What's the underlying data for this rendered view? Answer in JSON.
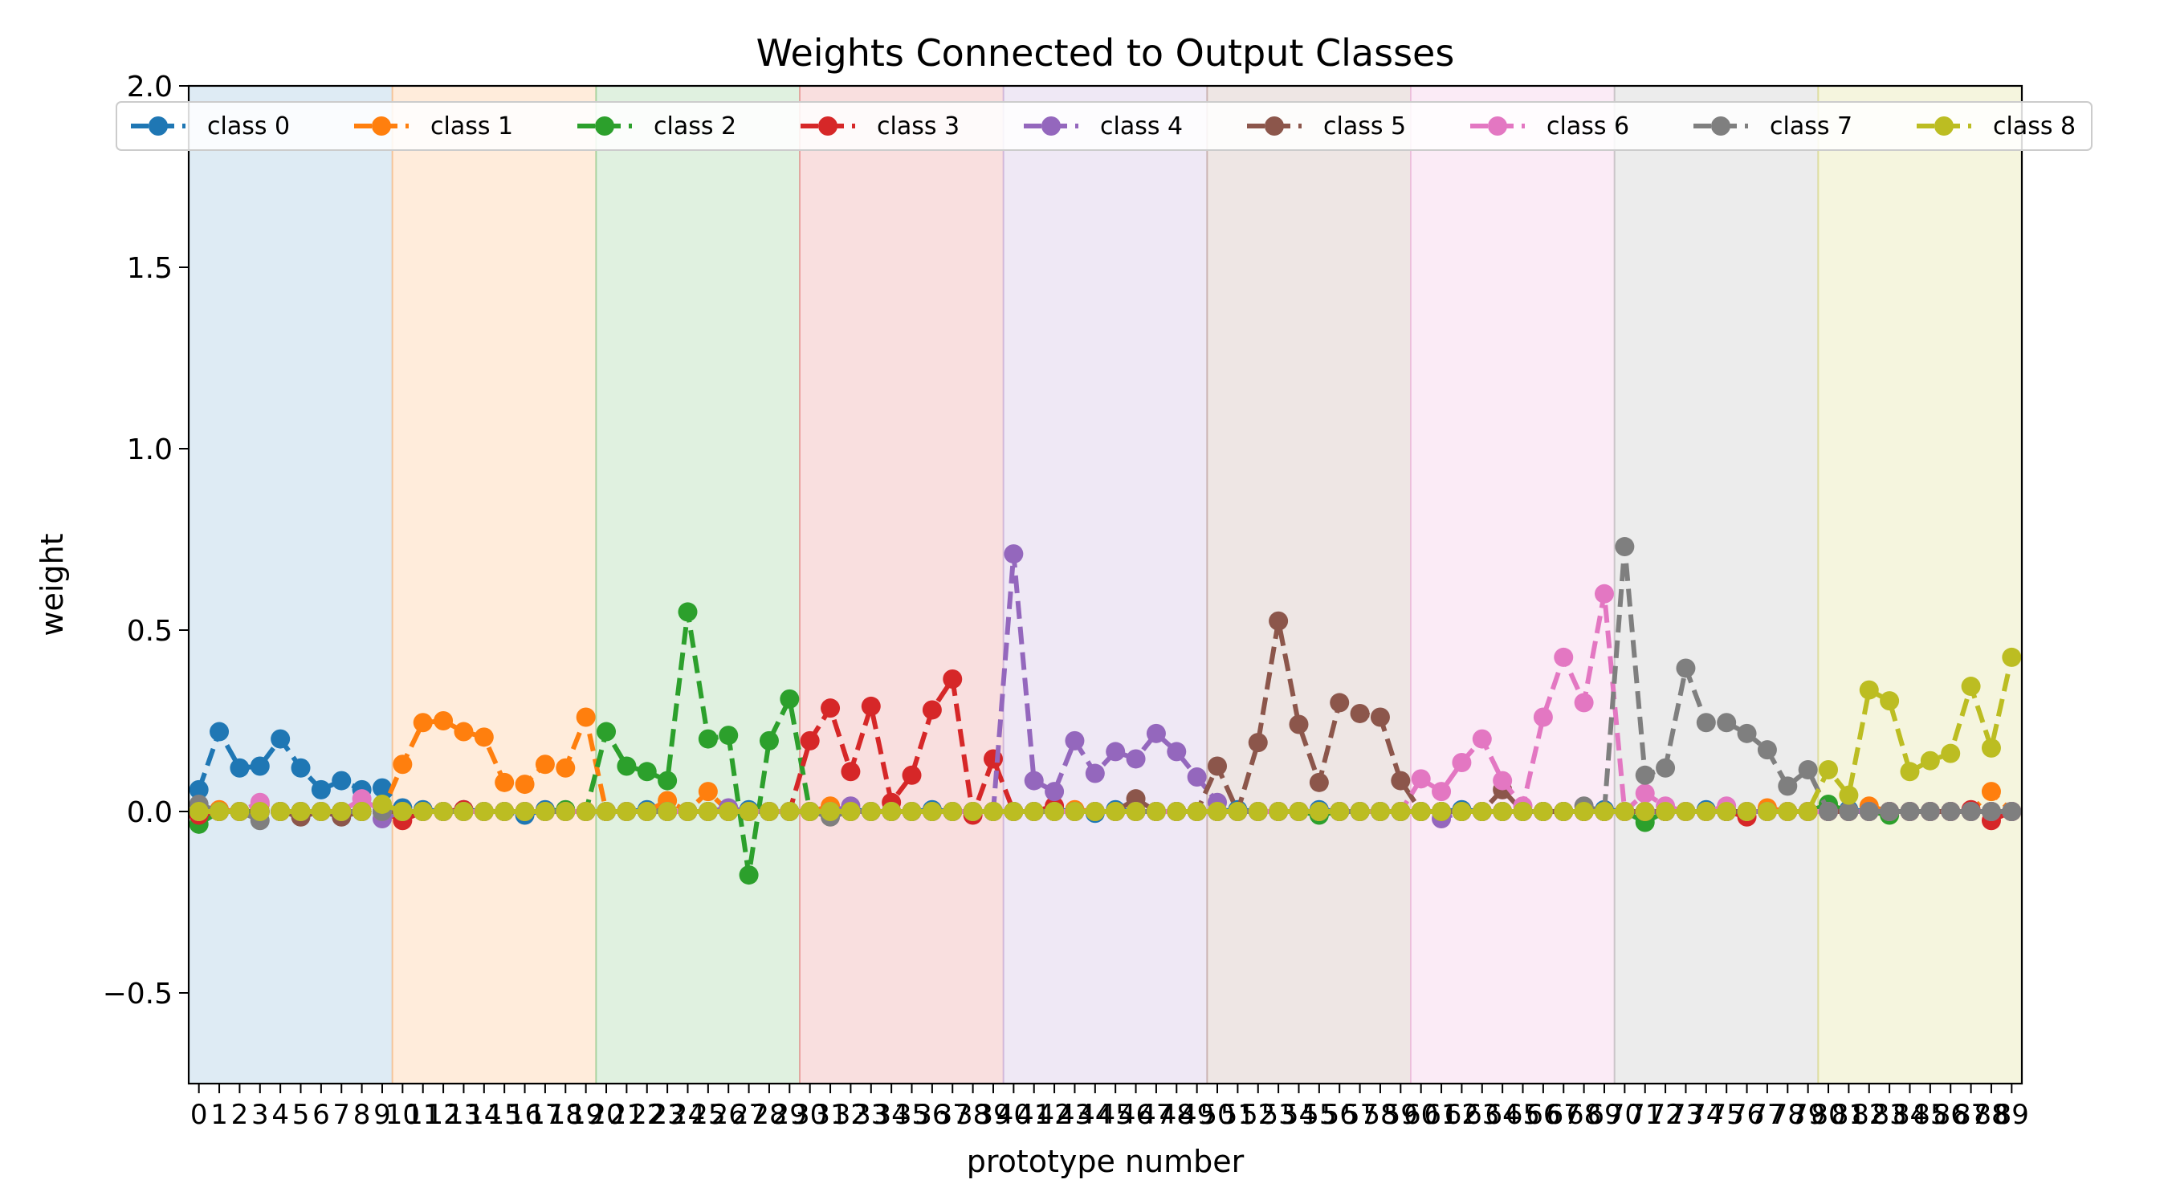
{
  "chart_data": {
    "type": "line",
    "title": "Weights Connected to Output Classes",
    "xlabel": "prototype number",
    "ylabel": "weight",
    "xlim": [
      -0.5,
      89.5
    ],
    "ylim": [
      -0.75,
      2.0
    ],
    "yticks": [
      -0.5,
      0.0,
      0.5,
      1.0,
      1.5,
      2.0
    ],
    "ytick_labels": [
      "−0.5",
      "0.0",
      "0.5",
      "1.0",
      "1.5",
      "2.0"
    ],
    "x": [
      0,
      1,
      2,
      3,
      4,
      5,
      6,
      7,
      8,
      9,
      10,
      11,
      12,
      13,
      14,
      15,
      16,
      17,
      18,
      19,
      20,
      21,
      22,
      23,
      24,
      25,
      26,
      27,
      28,
      29,
      30,
      31,
      32,
      33,
      34,
      35,
      36,
      37,
      38,
      39,
      40,
      41,
      42,
      43,
      44,
      45,
      46,
      47,
      48,
      49,
      50,
      51,
      52,
      53,
      54,
      55,
      56,
      57,
      58,
      59,
      60,
      61,
      62,
      63,
      64,
      65,
      66,
      67,
      68,
      69,
      70,
      71,
      72,
      73,
      74,
      75,
      76,
      77,
      78,
      79,
      80,
      81,
      82,
      83,
      84,
      85,
      86,
      87,
      88,
      89
    ],
    "legend_location": "top",
    "grid": false,
    "series": [
      {
        "name": "class 0",
        "color": "#1f77b4",
        "values": [
          0.06,
          0.22,
          0.12,
          0.125,
          0.2,
          0.12,
          0.06,
          0.085,
          0.06,
          0.065,
          0.01,
          0.005,
          0.0,
          0.005,
          0.0,
          0.0,
          -0.01,
          0.005,
          0.0,
          0.0,
          0.0,
          0.0,
          0.005,
          0.0,
          0.0,
          0.0,
          0.0,
          0.005,
          0.0,
          0.0,
          0.0,
          0.0,
          0.005,
          0.0,
          0.0,
          0.0,
          0.005,
          0.0,
          0.0,
          0.0,
          0.0,
          0.0,
          0.005,
          0.0,
          -0.005,
          0.005,
          0.0,
          0.0,
          0.0,
          0.0,
          0.0,
          0.005,
          0.0,
          0.0,
          0.0,
          0.005,
          0.0,
          0.0,
          0.0,
          0.0,
          0.0,
          0.0,
          0.005,
          0.0,
          0.0,
          0.0,
          0.0,
          0.0,
          0.0,
          0.005,
          0.0,
          0.0,
          0.0,
          0.0,
          0.005,
          0.0,
          0.0,
          0.0,
          0.0,
          0.0,
          0.0,
          0.005,
          0.0,
          0.0,
          0.0,
          0.0,
          0.0,
          0.0,
          0.0,
          0.0
        ]
      },
      {
        "name": "class 1",
        "color": "#ff7f0e",
        "values": [
          0.0,
          0.005,
          0.0,
          0.02,
          0.0,
          0.0,
          0.0,
          0.0,
          0.0,
          0.0,
          0.13,
          0.245,
          0.25,
          0.22,
          0.205,
          0.08,
          0.075,
          0.13,
          0.12,
          0.26,
          0.0,
          0.0,
          0.0,
          0.03,
          0.0,
          0.055,
          0.0,
          0.0,
          0.0,
          0.0,
          0.0,
          0.015,
          0.0,
          0.0,
          0.0,
          0.0,
          0.0,
          0.0,
          0.0,
          0.0,
          0.0,
          0.0,
          0.0,
          0.005,
          0.0,
          0.0,
          0.0,
          0.0,
          0.0,
          0.0,
          0.0,
          0.0,
          0.0,
          0.0,
          0.0,
          0.0,
          0.0,
          0.0,
          0.0,
          0.0,
          0.0,
          0.0,
          0.0,
          0.0,
          0.0,
          0.0,
          0.0,
          0.0,
          0.0,
          0.0,
          0.0,
          0.0,
          0.0,
          0.0,
          0.0,
          0.0,
          0.0,
          0.01,
          0.0,
          0.0,
          0.0,
          0.0,
          0.015,
          0.0,
          0.0,
          0.0,
          0.0,
          0.0,
          0.055,
          0.0
        ]
      },
      {
        "name": "class 2",
        "color": "#2ca02c",
        "values": [
          -0.035,
          0.0,
          0.0,
          0.0,
          0.0,
          0.0,
          0.0,
          0.0,
          0.0,
          0.0,
          0.0,
          0.0,
          0.0,
          0.0,
          0.0,
          0.0,
          0.0,
          0.0,
          0.005,
          0.0,
          0.22,
          0.125,
          0.11,
          0.085,
          0.55,
          0.2,
          0.21,
          -0.175,
          0.195,
          0.31,
          0.0,
          0.0,
          0.0,
          0.0,
          0.0,
          0.0,
          0.0,
          0.0,
          0.0,
          0.0,
          0.0,
          0.0,
          0.0,
          0.0,
          0.0,
          0.0,
          0.0,
          0.0,
          0.0,
          0.0,
          0.0,
          0.0,
          0.0,
          0.0,
          0.0,
          -0.01,
          0.0,
          0.0,
          0.0,
          0.0,
          0.0,
          0.0,
          0.0,
          0.0,
          0.0,
          0.0,
          0.0,
          0.0,
          0.0,
          0.0,
          0.0,
          -0.03,
          0.0,
          0.0,
          0.0,
          0.0,
          0.0,
          0.0,
          0.0,
          0.0,
          0.02,
          0.0,
          0.0,
          -0.01,
          0.0,
          0.0,
          0.0,
          0.0,
          0.0,
          0.0
        ]
      },
      {
        "name": "class 3",
        "color": "#d62728",
        "values": [
          -0.01,
          0.0,
          0.0,
          0.0,
          0.0,
          0.0,
          0.0,
          0.0,
          0.0,
          0.0,
          -0.025,
          0.0,
          0.0,
          0.005,
          0.0,
          0.0,
          0.0,
          0.0,
          0.0,
          0.0,
          0.0,
          0.0,
          0.0,
          0.0,
          0.0,
          0.0,
          0.0,
          0.0,
          0.0,
          0.0,
          0.195,
          0.285,
          0.11,
          0.29,
          0.025,
          0.1,
          0.28,
          0.365,
          -0.01,
          0.145,
          0.0,
          0.0,
          0.015,
          0.0,
          0.0,
          0.0,
          0.0,
          0.0,
          0.0,
          0.0,
          0.0,
          0.0,
          0.0,
          0.0,
          0.0,
          0.0,
          0.0,
          0.0,
          0.0,
          0.0,
          0.0,
          0.0,
          0.0,
          0.0,
          0.0,
          0.0,
          0.0,
          0.0,
          0.0,
          0.0,
          0.0,
          0.0,
          0.0,
          0.0,
          0.0,
          0.0,
          -0.015,
          0.0,
          0.0,
          0.0,
          0.0,
          0.0,
          0.0,
          0.0,
          0.0,
          0.0,
          0.0,
          0.005,
          -0.025,
          0.0
        ]
      },
      {
        "name": "class 4",
        "color": "#9467bd",
        "values": [
          0.0,
          0.0,
          0.0,
          0.0,
          0.0,
          0.0,
          0.0,
          0.0,
          0.0,
          -0.02,
          0.0,
          0.0,
          0.0,
          0.0,
          0.0,
          0.0,
          0.0,
          0.0,
          0.0,
          0.0,
          0.0,
          0.0,
          0.0,
          0.0,
          0.0,
          0.0,
          0.01,
          0.0,
          0.0,
          0.0,
          0.0,
          0.0,
          0.015,
          0.0,
          0.0,
          0.0,
          0.0,
          0.0,
          0.0,
          0.0,
          0.71,
          0.085,
          0.055,
          0.195,
          0.105,
          0.165,
          0.145,
          0.215,
          0.165,
          0.095,
          0.025,
          0.0,
          0.0,
          0.0,
          0.0,
          0.0,
          0.0,
          0.0,
          0.0,
          0.0,
          0.0,
          -0.02,
          0.0,
          0.0,
          0.0,
          0.0,
          0.0,
          0.0,
          0.0,
          0.0,
          0.0,
          0.0,
          0.0,
          0.0,
          0.0,
          0.0,
          0.0,
          0.0,
          0.0,
          0.0,
          0.0,
          0.0,
          0.0,
          0.0,
          0.0,
          0.0,
          0.0,
          0.0,
          0.0,
          0.0
        ]
      },
      {
        "name": "class 5",
        "color": "#8c564b",
        "values": [
          0.0,
          0.0,
          0.0,
          0.0,
          0.0,
          -0.015,
          0.0,
          -0.015,
          0.0,
          0.0,
          0.0,
          0.0,
          0.0,
          0.0,
          0.0,
          0.0,
          0.0,
          0.0,
          0.0,
          0.0,
          0.0,
          0.0,
          0.0,
          0.0,
          0.0,
          0.0,
          0.0,
          0.0,
          0.0,
          0.0,
          0.0,
          0.0,
          0.0,
          0.0,
          0.0,
          0.0,
          0.0,
          0.0,
          0.0,
          0.0,
          0.0,
          0.0,
          0.0,
          0.0,
          0.0,
          0.0,
          0.035,
          0.0,
          0.0,
          0.0,
          0.125,
          0.0,
          0.19,
          0.525,
          0.24,
          0.08,
          0.3,
          0.27,
          0.26,
          0.085,
          0.0,
          0.0,
          0.0,
          0.0,
          0.06,
          0.0,
          0.0,
          0.0,
          0.0,
          0.0,
          0.0,
          0.0,
          0.0,
          0.0,
          0.0,
          0.0,
          0.0,
          0.0,
          0.0,
          0.0,
          0.0,
          0.0,
          0.0,
          0.0,
          0.0,
          0.0,
          0.0,
          0.0,
          0.0,
          0.0
        ]
      },
      {
        "name": "class 6",
        "color": "#e377c2",
        "values": [
          0.0,
          0.0,
          0.0,
          0.025,
          0.0,
          0.0,
          0.0,
          0.0,
          0.035,
          0.0,
          0.0,
          0.0,
          0.0,
          0.0,
          0.0,
          0.0,
          0.0,
          0.0,
          0.0,
          0.0,
          0.0,
          0.0,
          0.0,
          0.0,
          0.0,
          0.0,
          0.0,
          0.0,
          0.0,
          0.0,
          0.0,
          0.0,
          0.0,
          0.0,
          0.0,
          0.0,
          0.0,
          0.0,
          0.0,
          0.0,
          0.0,
          0.0,
          0.0,
          0.0,
          0.0,
          0.0,
          0.0,
          0.0,
          0.0,
          0.0,
          0.0,
          0.0,
          0.0,
          0.0,
          0.0,
          0.0,
          0.0,
          0.0,
          0.0,
          0.0,
          0.09,
          0.055,
          0.135,
          0.2,
          0.085,
          0.015,
          0.26,
          0.425,
          0.3,
          0.6,
          0.0,
          0.05,
          0.015,
          0.0,
          0.0,
          0.015,
          0.0,
          0.0,
          0.0,
          0.0,
          0.0,
          0.0,
          0.0,
          0.0,
          0.0,
          0.0,
          0.0,
          0.0,
          0.0,
          0.0
        ]
      },
      {
        "name": "class 7",
        "color": "#7f7f7f",
        "values": [
          0.02,
          0.0,
          0.0,
          -0.025,
          0.0,
          0.0,
          0.0,
          0.0,
          0.0,
          0.0,
          0.0,
          0.0,
          0.0,
          0.0,
          0.0,
          0.0,
          0.0,
          0.0,
          0.0,
          0.0,
          0.0,
          0.0,
          0.0,
          0.0,
          0.0,
          0.0,
          0.0,
          0.0,
          0.0,
          0.0,
          0.0,
          -0.015,
          0.0,
          0.0,
          0.0,
          0.0,
          0.0,
          0.0,
          0.0,
          0.0,
          0.0,
          0.0,
          0.0,
          0.0,
          0.0,
          0.0,
          0.0,
          0.0,
          0.0,
          0.0,
          0.0,
          0.0,
          0.0,
          0.0,
          0.0,
          0.0,
          0.0,
          0.0,
          0.0,
          0.0,
          0.0,
          0.0,
          0.0,
          0.0,
          0.0,
          0.0,
          0.0,
          0.0,
          0.015,
          0.0,
          0.73,
          0.1,
          0.12,
          0.395,
          0.245,
          0.245,
          0.215,
          0.17,
          0.07,
          0.115,
          0.0,
          0.0,
          0.0,
          0.0,
          0.0,
          0.0,
          0.0,
          0.0,
          0.0,
          0.0
        ]
      },
      {
        "name": "class 8",
        "color": "#bcbd22",
        "values": [
          0.0,
          0.0,
          0.0,
          0.0,
          0.0,
          0.0,
          0.0,
          0.0,
          0.0,
          0.02,
          0.0,
          0.0,
          0.0,
          0.0,
          0.0,
          0.0,
          0.0,
          0.0,
          0.0,
          0.0,
          0.0,
          0.0,
          0.0,
          0.0,
          0.0,
          0.0,
          0.0,
          0.0,
          0.0,
          0.0,
          0.0,
          0.0,
          0.0,
          0.0,
          0.0,
          0.0,
          0.0,
          0.0,
          0.0,
          0.0,
          0.0,
          0.0,
          0.0,
          0.0,
          0.0,
          0.0,
          0.0,
          0.0,
          0.0,
          0.0,
          0.0,
          0.0,
          0.0,
          0.0,
          0.0,
          0.0,
          0.0,
          0.0,
          0.0,
          0.0,
          0.0,
          0.0,
          0.0,
          0.0,
          0.0,
          0.0,
          0.0,
          0.0,
          0.0,
          0.0,
          0.0,
          0.0,
          0.0,
          0.0,
          0.0,
          0.0,
          0.0,
          0.0,
          0.0,
          0.0,
          0.115,
          0.045,
          0.335,
          0.305,
          0.11,
          0.14,
          0.16,
          0.345,
          0.175,
          0.425
        ]
      }
    ],
    "class_bands": [
      {
        "class": 0,
        "start": 0,
        "end": 9,
        "color": "#1f77b4"
      },
      {
        "class": 1,
        "start": 10,
        "end": 19,
        "color": "#ff7f0e"
      },
      {
        "class": 2,
        "start": 20,
        "end": 29,
        "color": "#2ca02c"
      },
      {
        "class": 3,
        "start": 30,
        "end": 39,
        "color": "#d62728"
      },
      {
        "class": 4,
        "start": 40,
        "end": 49,
        "color": "#9467bd"
      },
      {
        "class": 5,
        "start": 50,
        "end": 59,
        "color": "#8c564b"
      },
      {
        "class": 6,
        "start": 60,
        "end": 69,
        "color": "#e377c2"
      },
      {
        "class": 7,
        "start": 70,
        "end": 79,
        "color": "#7f7f7f"
      },
      {
        "class": 8,
        "start": 80,
        "end": 89,
        "color": "#bcbd22"
      }
    ]
  }
}
